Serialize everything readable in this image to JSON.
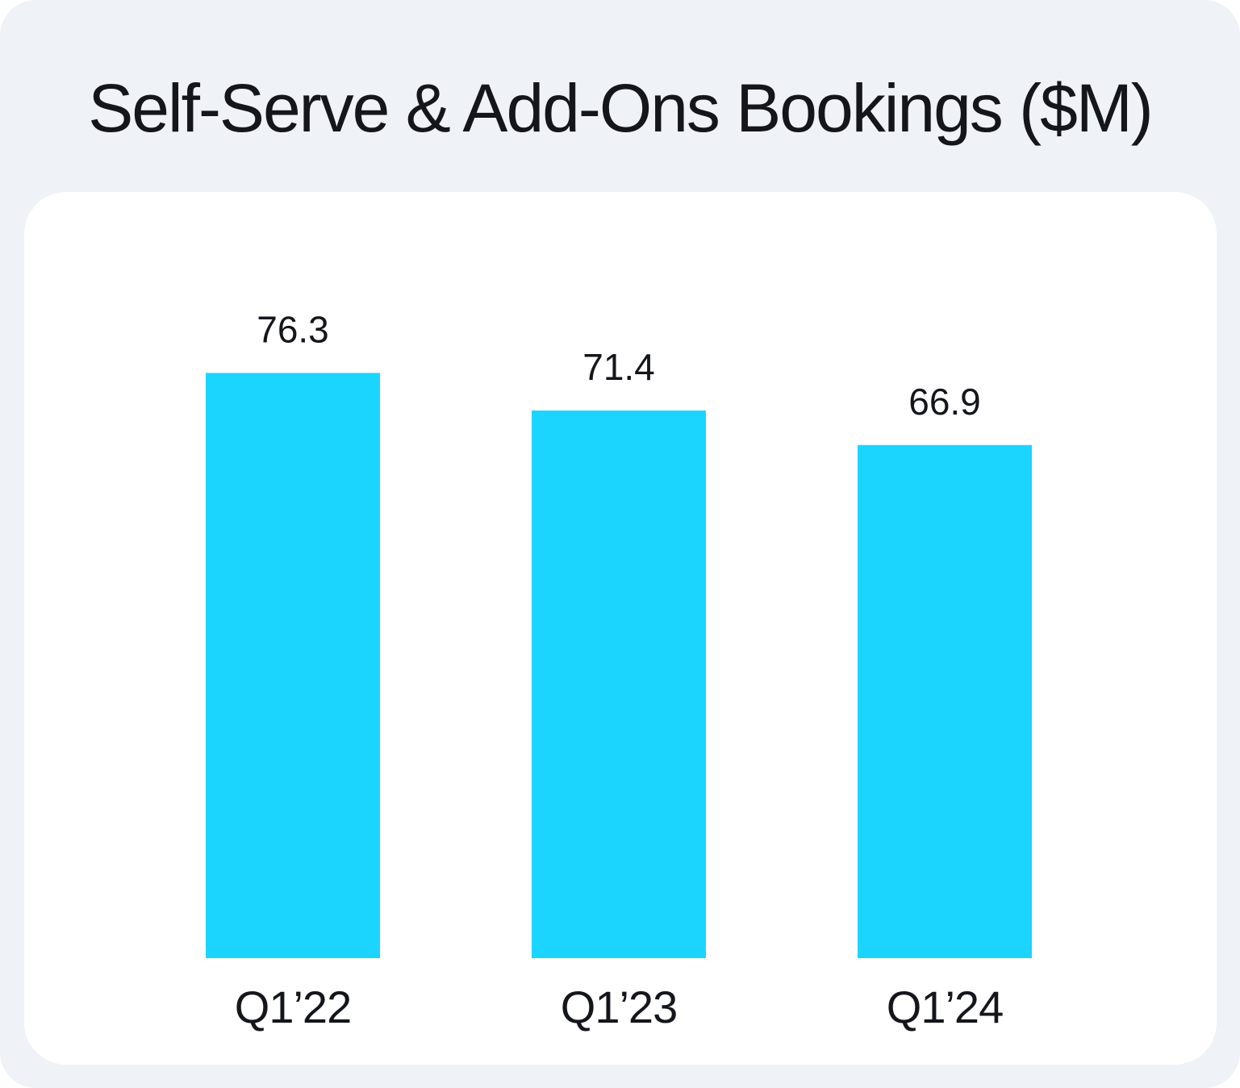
{
  "chart_data": {
    "type": "bar",
    "title": "Self-Serve & Add-Ons Bookings ($M)",
    "categories": [
      "Q1’22",
      "Q1’23",
      "Q1’24"
    ],
    "values": [
      76.3,
      71.4,
      66.9
    ],
    "value_labels": [
      "76.3",
      "71.4",
      "66.9"
    ],
    "xlabel": "",
    "ylabel": "",
    "grid": false,
    "legend": "none",
    "colors": {
      "bar": "#1bd5ff",
      "text": "#14161c",
      "background": "#eff3f8",
      "panel": "#ffffff"
    }
  }
}
